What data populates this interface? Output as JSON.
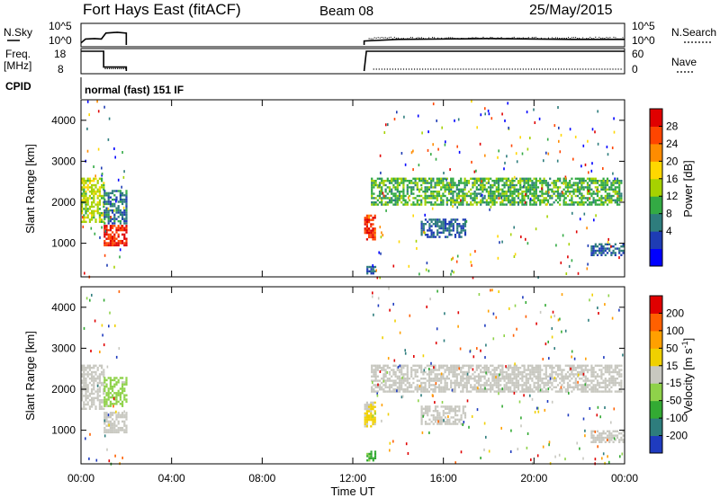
{
  "header": {
    "title": "Fort Hays East (fitACF)",
    "beam": "Beam 08",
    "date": "25/May/2015"
  },
  "top_panels": {
    "nsky_label": "N.Sky",
    "nsky_ticks": [
      "10^5",
      "10^0"
    ],
    "nsky_right_ticks": [
      "10^5",
      "10^0"
    ],
    "nsearch_label": "N.Search",
    "freq_label": [
      "Freq.",
      "[MHz]"
    ],
    "freq_ticks": [
      "18",
      "8"
    ],
    "nave_ticks": [
      "60",
      "0"
    ],
    "nave_label": "Nave",
    "cpid_label": "CPID",
    "cpid_value": "normal (fast) 151 IF"
  },
  "power_panel": {
    "ylabel": "Slant Range [km]",
    "yticks": [
      "4000",
      "3000",
      "2000",
      "1000"
    ],
    "colorbar_label": "Power [dB]",
    "colorbar_ticks": [
      "28",
      "24",
      "20",
      "16",
      "12",
      "8",
      "4"
    ],
    "colors": [
      "#0000ff",
      "#1e3cb4",
      "#2e7d7d",
      "#33aa44",
      "#a6d200",
      "#ffd700",
      "#ff8c00",
      "#ff4500",
      "#e00000"
    ]
  },
  "velocity_panel": {
    "ylabel": "Slant Range [km]",
    "yticks": [
      "4000",
      "3000",
      "2000",
      "1000"
    ],
    "colorbar_label": "Velocity [m s^-1]",
    "colorbar_ticks": [
      "200",
      "100",
      "50",
      "15",
      "-15",
      "-50",
      "-100",
      "-200"
    ],
    "colors": [
      "#1f3bbf",
      "#2e7d7d",
      "#33aa33",
      "#8fd24a",
      "#c8c8c0",
      "#f0d000",
      "#ffa000",
      "#ff6000",
      "#e00000"
    ]
  },
  "x_axis": {
    "ticks": [
      "00:00",
      "04:00",
      "08:00",
      "12:00",
      "16:00",
      "20:00",
      "00:00"
    ],
    "label": "Time UT"
  },
  "chart_data": [
    {
      "type": "heatmap",
      "title": "Power [dB]",
      "ylabel": "Slant Range [km]",
      "xlabel": "Time UT",
      "xlim_hours": [
        0,
        24
      ],
      "ylim_km": [
        180,
        4500
      ],
      "colorbar_range": [
        0,
        30
      ],
      "regions": [
        {
          "t0": 0.0,
          "t1": 1.0,
          "r0": 1500,
          "r1": 2600,
          "level": 15
        },
        {
          "t0": 1.0,
          "t1": 2.0,
          "r0": 950,
          "r1": 1450,
          "level": 27
        },
        {
          "t0": 1.0,
          "t1": 2.0,
          "r0": 1500,
          "r1": 2300,
          "level": 8
        },
        {
          "t0": 12.5,
          "t1": 13.0,
          "r0": 1100,
          "r1": 1700,
          "level": 26
        },
        {
          "t0": 12.6,
          "t1": 13.0,
          "r0": 250,
          "r1": 500,
          "level": 6
        },
        {
          "t0": 12.8,
          "t1": 23.9,
          "r0": 1950,
          "r1": 2600,
          "level": 12
        },
        {
          "t0": 15.0,
          "t1": 17.0,
          "r0": 1150,
          "r1": 1600,
          "level": 7
        },
        {
          "t0": 22.5,
          "t1": 23.9,
          "r0": 700,
          "r1": 1000,
          "level": 7
        }
      ]
    },
    {
      "type": "heatmap",
      "title": "Velocity [m s^-1]",
      "ylabel": "Slant Range [km]",
      "xlabel": "Time UT",
      "xlim_hours": [
        0,
        24
      ],
      "ylim_km": [
        180,
        4500
      ],
      "colorbar_range": [
        -200,
        200
      ],
      "regions": [
        {
          "t0": 0.0,
          "t1": 1.0,
          "r0": 1500,
          "r1": 2600,
          "level": 0
        },
        {
          "t0": 1.0,
          "t1": 2.0,
          "r0": 950,
          "r1": 1450,
          "level": 0
        },
        {
          "t0": 1.0,
          "t1": 2.0,
          "r0": 1600,
          "r1": 2300,
          "level": -40
        },
        {
          "t0": 12.5,
          "t1": 13.0,
          "r0": 1100,
          "r1": 1700,
          "level": 30
        },
        {
          "t0": 12.6,
          "t1": 13.0,
          "r0": 250,
          "r1": 500,
          "level": -80
        },
        {
          "t0": 12.8,
          "t1": 23.9,
          "r0": 1950,
          "r1": 2600,
          "level": 0
        },
        {
          "t0": 15.0,
          "t1": 17.0,
          "r0": 1150,
          "r1": 1600,
          "level": 0
        },
        {
          "t0": 22.5,
          "t1": 23.9,
          "r0": 700,
          "r1": 1000,
          "level": 0
        }
      ]
    },
    {
      "type": "line",
      "title": "N.Sky",
      "x_hours": [
        0.0,
        0.2,
        0.6,
        0.9,
        1.1,
        1.6,
        2.0,
        12.5,
        14.0,
        18.0,
        22.0,
        24.0
      ],
      "y_log10": [
        0.5,
        1.5,
        1.6,
        1.5,
        3.0,
        3.2,
        3.0,
        1.0,
        1.4,
        1.6,
        1.4,
        1.4
      ]
    },
    {
      "type": "line",
      "title": "Freq. [MHz]",
      "x_hours": [
        0.0,
        1.0,
        1.0,
        2.0,
        12.5,
        12.6,
        24.0
      ],
      "y_mhz": [
        18,
        18,
        10,
        10,
        8,
        18,
        18
      ],
      "nave_level": 10
    }
  ]
}
